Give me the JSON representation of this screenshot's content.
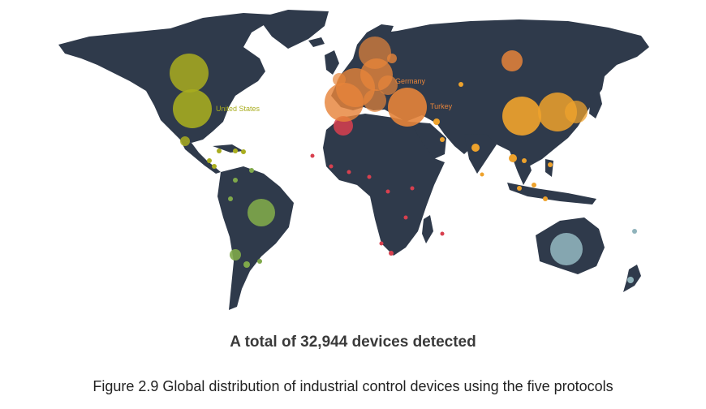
{
  "colors": {
    "land": "#2f3a4b",
    "background": "#ffffff",
    "north_america": "#a9ad1f",
    "south_america": "#7fa84a",
    "europe": "#e6843a",
    "asia": "#eea22c",
    "africa": "#d8404f",
    "oceania": "#8fb3bb"
  },
  "map": {
    "country_labels": [
      {
        "key": "us",
        "text": "United States",
        "color": "#a9ad1f"
      },
      {
        "key": "de",
        "text": "Germany",
        "color": "#e6843a"
      },
      {
        "key": "tr",
        "text": "Turkey",
        "color": "#e6843a"
      }
    ]
  },
  "summary": "A total of 32,944 devices detected",
  "caption": "Figure 2.9 Global distribution of industrial control devices using the five protocols"
}
